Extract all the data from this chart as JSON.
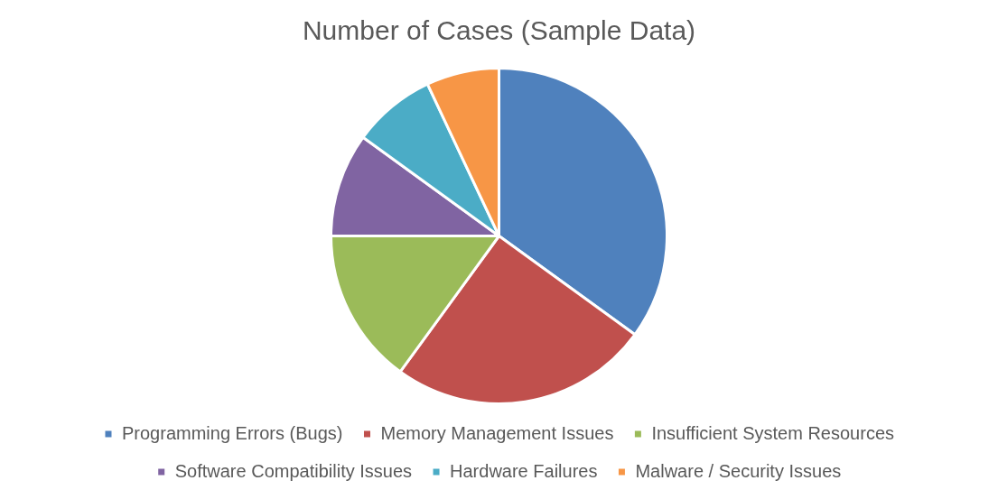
{
  "chart_data": {
    "type": "pie",
    "title": "Number of Cases (Sample Data)",
    "categories": [
      "Programming Errors (Bugs)",
      "Memory Management Issues",
      "Insufficient System Resources",
      "Software Compatibility Issues",
      "Hardware Failures",
      "Malware / Security Issues"
    ],
    "values": [
      35,
      25,
      15,
      10,
      8,
      7
    ],
    "colors": [
      "#4f81bd",
      "#c0504d",
      "#9bbb59",
      "#8064a2",
      "#4bacc6",
      "#f79646"
    ],
    "legend": "bottom"
  }
}
